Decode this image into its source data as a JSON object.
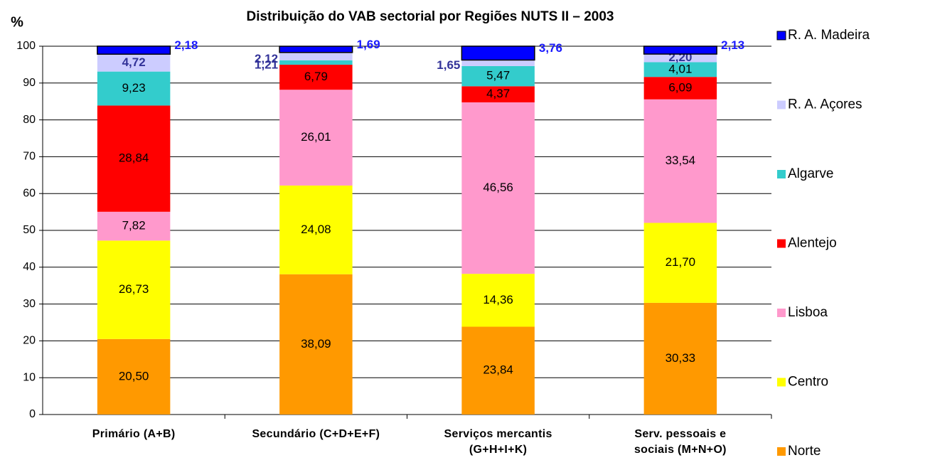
{
  "chart_data": {
    "type": "stacked_bar",
    "title": "Distribuição do VAB sectorial por Regiões NUTS II – 2003",
    "y_label": "%",
    "categories": [
      "Primário  (A+B)",
      "Secundário (C+D+E+F)",
      "Serviços mercantis\n(G+H+I+K)",
      "Serv. pessoais e\nsociais (M+N+O)"
    ],
    "series": [
      {
        "name": "Norte",
        "color": "#ff9900",
        "values": [
          20.5,
          38.09,
          23.84,
          30.33
        ],
        "value_labels": [
          "20,50",
          "38,09",
          "23,84",
          "30,33"
        ]
      },
      {
        "name": "Centro",
        "color": "#ffff00",
        "values": [
          26.73,
          24.08,
          14.36,
          21.7
        ],
        "value_labels": [
          "26,73",
          "24,08",
          "14,36",
          "21,70"
        ]
      },
      {
        "name": "Lisboa",
        "color": "#ff99cc",
        "values": [
          7.82,
          26.01,
          46.56,
          33.54
        ],
        "value_labels": [
          "7,82",
          "26,01",
          "46,56",
          "33,54"
        ]
      },
      {
        "name": "Alentejo",
        "color": "#ff0000",
        "values": [
          28.84,
          6.79,
          4.37,
          6.09
        ],
        "value_labels": [
          "28,84",
          "6,79",
          "4,37",
          "6,09"
        ]
      },
      {
        "name": "Algarve",
        "color": "#33cccc",
        "values": [
          9.23,
          1.21,
          5.47,
          4.01
        ],
        "value_labels": [
          "9,23",
          "1,21",
          "5,47",
          "4,01"
        ]
      },
      {
        "name": "R. A. Açores",
        "color": "#ccccff",
        "values": [
          4.72,
          2.12,
          1.65,
          2.2
        ],
        "value_labels": [
          "4,72",
          "2,12",
          "1,65",
          "2,20"
        ]
      },
      {
        "name": "R. A. Madeira",
        "color": "#0000ff",
        "values": [
          2.18,
          1.69,
          3.76,
          2.13
        ],
        "value_labels": [
          "2,18",
          "1,69",
          "3,76",
          "2,13"
        ]
      }
    ],
    "ylim": [
      0,
      100
    ],
    "yticks": [
      0,
      10,
      20,
      30,
      40,
      50,
      60,
      70,
      80,
      90,
      100
    ],
    "grid": true,
    "legend": "right"
  }
}
